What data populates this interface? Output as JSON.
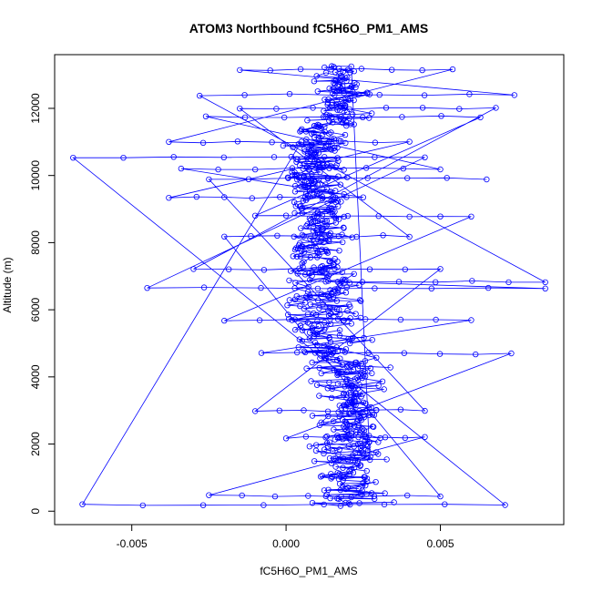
{
  "chart_data": {
    "type": "scatter",
    "title": "ATOM3 Northbound fC5H6O_PM1_AMS",
    "xlabel": "fC5H6O_PM1_AMS",
    "ylabel": "Altitude (m)",
    "xlim": [
      -0.0075,
      0.009
    ],
    "ylim": [
      -400,
      13600
    ],
    "x_ticks": [
      -0.005,
      0.0,
      0.005
    ],
    "x_tick_labels": [
      "-0.005",
      "0.000",
      "0.005"
    ],
    "y_ticks": [
      0,
      2000,
      4000,
      6000,
      8000,
      10000,
      12000
    ],
    "y_tick_labels": [
      "0",
      "2000",
      "4000",
      "6000",
      "8000",
      "10000",
      "12000"
    ],
    "grid": false,
    "connected": true,
    "marker": "open-circle",
    "color": "#0000ff",
    "series": [
      {
        "profiles": [
          {
            "center_x": 0.002,
            "spread": 0.0022,
            "alt_from": 150,
            "alt_to": 2200,
            "points": 90
          },
          {
            "center_x": 0.0018,
            "spread": 0.002,
            "alt_from": 2200,
            "alt_to": 4500,
            "points": 90
          },
          {
            "center_x": 0.0014,
            "spread": 0.0022,
            "alt_from": 4500,
            "alt_to": 7000,
            "points": 100
          },
          {
            "center_x": 0.0012,
            "spread": 0.002,
            "alt_from": 7000,
            "alt_to": 9500,
            "points": 100
          },
          {
            "center_x": 0.001,
            "spread": 0.0018,
            "alt_from": 9500,
            "alt_to": 11500,
            "points": 100
          },
          {
            "center_x": 0.0018,
            "spread": 0.0016,
            "alt_from": 11500,
            "alt_to": 13200,
            "points": 90
          },
          {
            "center_x": 0.0025,
            "spread": 0.0012,
            "alt_from": 1500,
            "alt_to": 4500,
            "points": 70
          },
          {
            "center_x": 0.0008,
            "spread": 0.0015,
            "alt_from": 5000,
            "alt_to": 11000,
            "points": 80
          }
        ],
        "level_legs": [
          {
            "alt": 180,
            "x_from": -0.0066,
            "x_to": 0.0071
          },
          {
            "alt": 10550,
            "x_from": -0.0069,
            "x_to": 0.0045
          },
          {
            "alt": 6650,
            "x_from": -0.0045,
            "x_to": 0.0084
          },
          {
            "alt": 6850,
            "x_from": 0.0001,
            "x_to": 0.0084
          },
          {
            "alt": 12400,
            "x_from": -0.0028,
            "x_to": 0.0074
          },
          {
            "alt": 13150,
            "x_from": -0.0015,
            "x_to": 0.0054
          },
          {
            "alt": 11000,
            "x_from": -0.0038,
            "x_to": 0.004
          },
          {
            "alt": 9350,
            "x_from": -0.0038,
            "x_to": 0.0025
          },
          {
            "alt": 10200,
            "x_from": -0.0034,
            "x_to": 0.005
          },
          {
            "alt": 11750,
            "x_from": -0.0026,
            "x_to": 0.0063
          },
          {
            "alt": 8800,
            "x_from": -0.001,
            "x_to": 0.006
          },
          {
            "alt": 5700,
            "x_from": -0.002,
            "x_to": 0.006
          },
          {
            "alt": 4700,
            "x_from": -0.0008,
            "x_to": 0.0073
          },
          {
            "alt": 2200,
            "x_from": 0.0,
            "x_to": 0.0045
          },
          {
            "alt": 450,
            "x_from": -0.0025,
            "x_to": 0.005
          },
          {
            "alt": 8200,
            "x_from": -0.002,
            "x_to": 0.004
          },
          {
            "alt": 12000,
            "x_from": -0.0015,
            "x_to": 0.0068
          },
          {
            "alt": 7200,
            "x_from": -0.003,
            "x_to": 0.005
          },
          {
            "alt": 3000,
            "x_from": -0.001,
            "x_to": 0.0045
          },
          {
            "alt": 9900,
            "x_from": -0.0025,
            "x_to": 0.0065
          }
        ]
      }
    ]
  }
}
